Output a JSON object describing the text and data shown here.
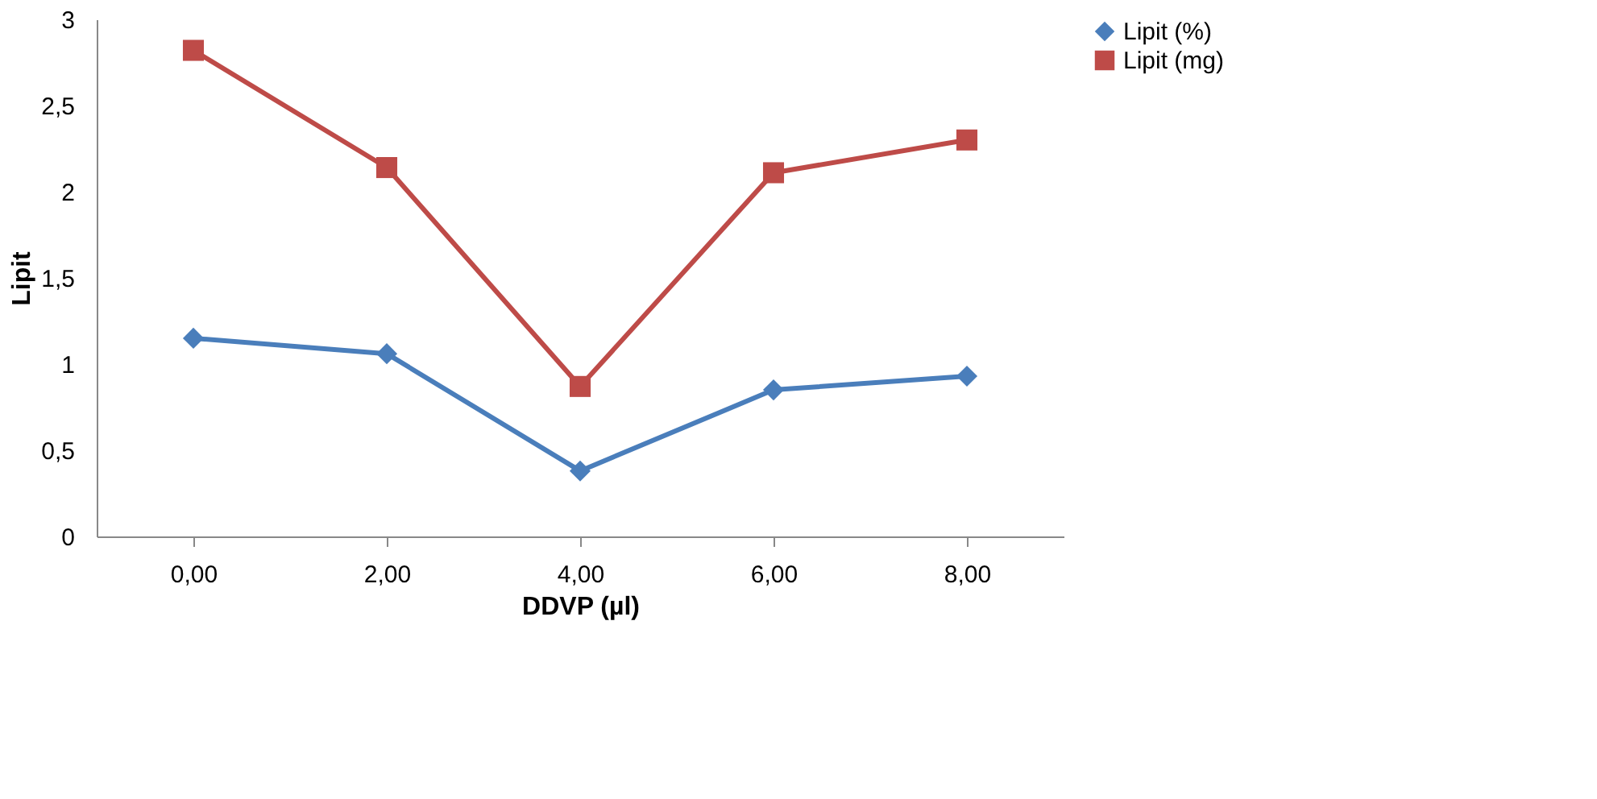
{
  "chart_data": {
    "type": "line",
    "xlabel": "DDVP (µl)",
    "ylabel": "Lipit",
    "categories": [
      "0,00",
      "2,00",
      "4,00",
      "6,00",
      "8,00"
    ],
    "series": [
      {
        "name": "Lipit (%)",
        "color": "#4a7ebb",
        "marker": "diamond",
        "values": [
          1.15,
          1.06,
          0.38,
          0.85,
          0.93
        ]
      },
      {
        "name": "Lipit (mg)",
        "color": "#be4b48",
        "marker": "square",
        "values": [
          2.82,
          2.14,
          0.87,
          2.11,
          2.3
        ]
      }
    ],
    "ylim": [
      0,
      3
    ],
    "yticks": [
      0,
      {
        "value": 0.5,
        "label": "0,5"
      },
      1,
      {
        "value": 1.5,
        "label": "1,5"
      },
      2,
      {
        "value": 2.5,
        "label": "2,5"
      },
      3
    ],
    "grid": false,
    "legend": "right",
    "line_style": "solid"
  }
}
